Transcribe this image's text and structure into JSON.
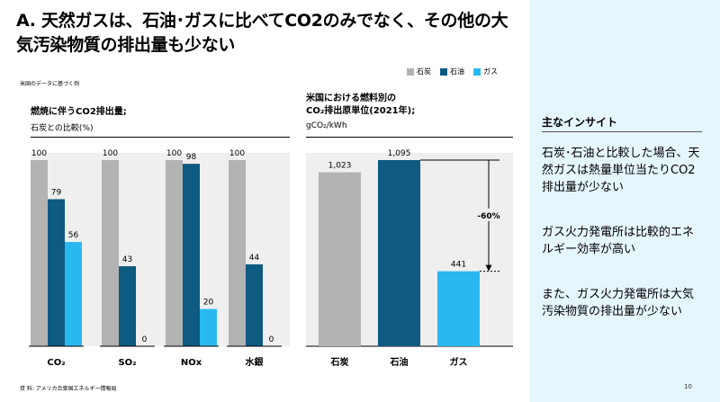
{
  "title": "A. 天然ガスは、石油･ガスに比べてCO2のみでなく、その他の大気汚染物質の排出量も少ない",
  "note": "米国のデータに基づく例",
  "legend": [
    {
      "label": "石炭",
      "color": "#b3b3b3"
    },
    {
      "label": "石油",
      "color": "#0e5a80"
    },
    {
      "label": "ガス",
      "color": "#2ab8f0"
    }
  ],
  "chart1_text": {
    "title": "燃焼に伴うCO2排出量;",
    "subtitle": "石炭との比較(%)"
  },
  "chart2_text": {
    "title_line1": "米国における燃料別の",
    "title_line2": "CO₂排出原単位(2021年);",
    "subtitle": "gCO₂/kWh"
  },
  "chart_data": [
    {
      "type": "bar",
      "title": "燃焼に伴うCO2排出量;",
      "ylabel": "石炭との比較(%)",
      "categories": [
        "CO₂",
        "SO₂",
        "NOx",
        "水銀"
      ],
      "series": [
        {
          "name": "石炭",
          "color": "#b3b3b3",
          "values": [
            100,
            100,
            100,
            100
          ]
        },
        {
          "name": "石油",
          "color": "#0e5a80",
          "values": [
            79,
            43,
            98,
            44
          ]
        },
        {
          "name": "ガス",
          "color": "#2ab8f0",
          "values": [
            56,
            0,
            20,
            0
          ]
        }
      ],
      "ylim": [
        0,
        100
      ]
    },
    {
      "type": "bar",
      "title": "米国における燃料別のCO₂排出原単位(2021年);",
      "ylabel": "gCO₂/kWh",
      "categories": [
        "石炭",
        "石油",
        "ガス"
      ],
      "values": [
        1023,
        1095,
        441
      ],
      "colors": [
        "#b3b3b3",
        "#0e5a80",
        "#2ab8f0"
      ],
      "value_labels": [
        "1,023",
        "1,095",
        "441"
      ],
      "annotation": "-60%",
      "ylim": [
        0,
        1095
      ]
    }
  ],
  "sidebar": {
    "title": "主なインサイト",
    "insights": [
      "石炭･石油と比較した場合、天然ガスは熱量単位当たりCO2排出量が少ない",
      "ガス火力発電所は比較的エネルギー効率が高い",
      "また、ガス火力発電所は大気汚染物質の排出量が少ない"
    ]
  },
  "footer": "資 料: アメリカ合衆国エネルギー情報局",
  "page_number": "10"
}
